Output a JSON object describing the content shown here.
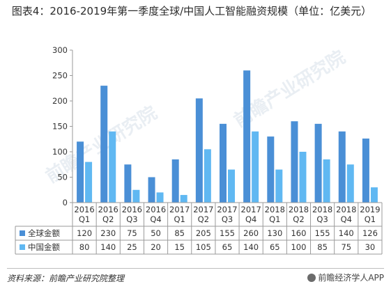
{
  "header": {
    "title": "图表4：2016-2019年第一季度全球/中国人工智能融资规模（单位：亿美元）"
  },
  "chart_data": {
    "type": "bar",
    "categories": [
      [
        "2016",
        "Q1"
      ],
      [
        "2016",
        "Q2"
      ],
      [
        "2016",
        "Q3"
      ],
      [
        "2016",
        "Q4"
      ],
      [
        "2017",
        "Q1"
      ],
      [
        "2017",
        "Q2"
      ],
      [
        "2017",
        "Q3"
      ],
      [
        "2017",
        "Q4"
      ],
      [
        "2018",
        "Q1"
      ],
      [
        "2018",
        "Q2"
      ],
      [
        "2018",
        "Q3"
      ],
      [
        "2018",
        "Q4"
      ],
      [
        "2019",
        "Q1"
      ]
    ],
    "series": [
      {
        "name": "全球金额",
        "color": "#4a8fd6",
        "values": [
          120,
          230,
          75,
          50,
          85,
          205,
          155,
          260,
          130,
          160,
          155,
          140,
          126
        ]
      },
      {
        "name": "中国金额",
        "color": "#60b8f2",
        "values": [
          80,
          140,
          25,
          20,
          15,
          105,
          65,
          140,
          65,
          100,
          85,
          75,
          30
        ]
      }
    ],
    "ylim": [
      0,
      300
    ],
    "yticks": [
      0,
      50,
      100,
      150,
      200,
      250,
      300
    ],
    "grid": false,
    "legend": "data-table-left"
  },
  "watermark": "前瞻产业研究院",
  "footer": {
    "source": "资料来源：前瞻产业研究院整理",
    "brand": "前瞻经济学人APP"
  }
}
